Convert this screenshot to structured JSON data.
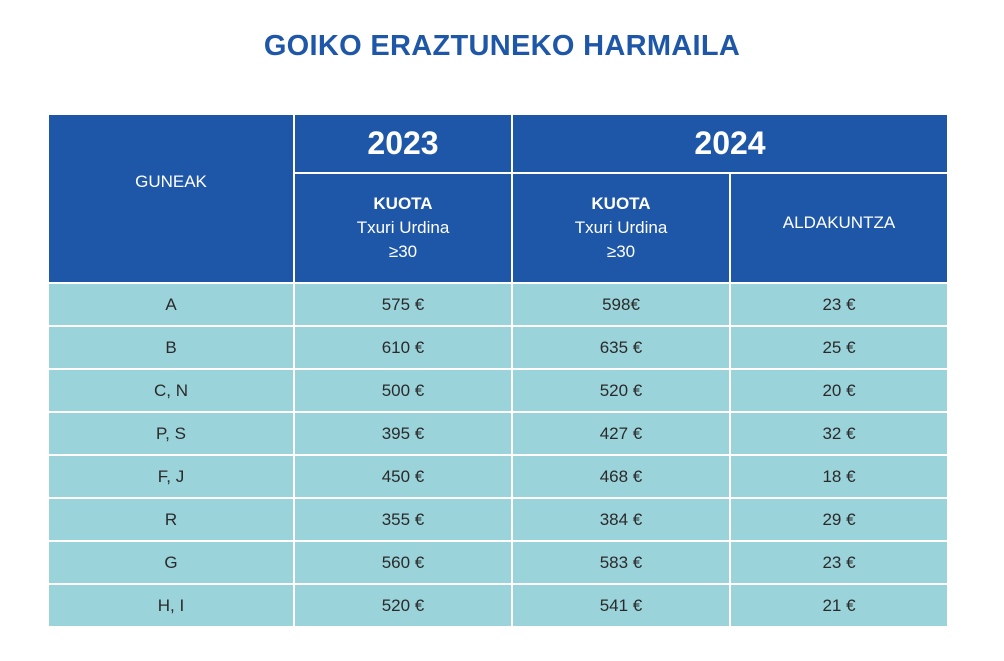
{
  "title": "GOIKO ERAZTUNEKO HARMAILA",
  "header": {
    "zones_label": "GUNEAK",
    "year_2023": "2023",
    "year_2024": "2024",
    "fee_2023": {
      "kuota": "KUOTA",
      "line1": "Txuri Urdina",
      "line2": "≥30"
    },
    "fee_2024": {
      "kuota": "KUOTA",
      "line1": "Txuri Urdina",
      "line2": "≥30"
    },
    "change_label": "ALDAKUNTZA"
  },
  "rows": [
    {
      "zone": "A",
      "fee_2023": "575 €",
      "fee_2024": "598€",
      "change": "23 €"
    },
    {
      "zone": "B",
      "fee_2023": "610 €",
      "fee_2024": "635 €",
      "change": "25 €"
    },
    {
      "zone": "C, N",
      "fee_2023": "500 €",
      "fee_2024": "520 €",
      "change": "20 €"
    },
    {
      "zone": "P, S",
      "fee_2023": "395 €",
      "fee_2024": "427 €",
      "change": "32 €"
    },
    {
      "zone": "F, J",
      "fee_2023": "450 €",
      "fee_2024": "468 €",
      "change": "18 €"
    },
    {
      "zone": "R",
      "fee_2023": "355 €",
      "fee_2024": "384 €",
      "change": "29 €"
    },
    {
      "zone": "G",
      "fee_2023": "560 €",
      "fee_2024": "583 €",
      "change": "23 €"
    },
    {
      "zone": "H, I",
      "fee_2023": "520 €",
      "fee_2024": "541 €",
      "change": "21 €"
    }
  ],
  "colors": {
    "header_blue": "#1f57a8",
    "row_teal": "#9bd3da",
    "title_blue": "#1f57a8"
  }
}
